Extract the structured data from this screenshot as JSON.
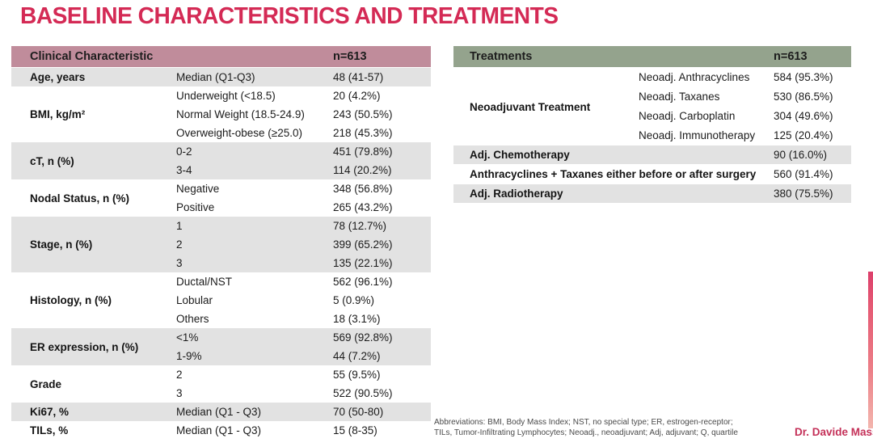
{
  "title": "BASELINE CHARACTERISTICS AND TREATMENTS",
  "colors": {
    "title": "#d42a55",
    "clinical_header_bg": "#c08c9b",
    "treatments_header_bg": "#94a38d",
    "row_shade": "#e2e2e2",
    "attribution": "#c43058",
    "accent_bar_top": "#dc3f6b",
    "accent_bar_bottom": "#f3b6ae"
  },
  "clinical_table": {
    "header": {
      "label": "Clinical Characteristic",
      "n": "n=613"
    },
    "groups": [
      {
        "label": "Age, years",
        "rows": [
          {
            "sub": "Median (Q1-Q3)",
            "value": "48 (41-57)"
          }
        ]
      },
      {
        "label": "BMI, kg/m²",
        "rows": [
          {
            "sub": "Underweight (<18.5)",
            "value": "20 (4.2%)"
          },
          {
            "sub": "Normal Weight (18.5-24.9)",
            "value": "243 (50.5%)"
          },
          {
            "sub": "Overweight-obese (≥25.0)",
            "value": "218 (45.3%)"
          }
        ]
      },
      {
        "label": "cT, n (%)",
        "rows": [
          {
            "sub": "0-2",
            "value": "451 (79.8%)"
          },
          {
            "sub": "3-4",
            "value": "114 (20.2%)"
          }
        ]
      },
      {
        "label": "Nodal Status, n (%)",
        "rows": [
          {
            "sub": "Negative",
            "value": "348 (56.8%)"
          },
          {
            "sub": "Positive",
            "value": "265 (43.2%)"
          }
        ]
      },
      {
        "label": "Stage, n (%)",
        "rows": [
          {
            "sub": "1",
            "value": "78 (12.7%)"
          },
          {
            "sub": "2",
            "value": "399 (65.2%)"
          },
          {
            "sub": "3",
            "value": "135 (22.1%)"
          }
        ]
      },
      {
        "label": "Histology, n (%)",
        "rows": [
          {
            "sub": "Ductal/NST",
            "value": "562 (96.1%)"
          },
          {
            "sub": "Lobular",
            "value": "5 (0.9%)"
          },
          {
            "sub": "Others",
            "value": "18 (3.1%)"
          }
        ]
      },
      {
        "label": "ER expression, n (%)",
        "rows": [
          {
            "sub": "<1%",
            "value": "569 (92.8%)"
          },
          {
            "sub": "1-9%",
            "value": "44 (7.2%)"
          }
        ]
      },
      {
        "label": "Grade",
        "rows": [
          {
            "sub": "2",
            "value": "55 (9.5%)"
          },
          {
            "sub": "3",
            "value": "522 (90.5%)"
          }
        ]
      },
      {
        "label": "Ki67, %",
        "rows": [
          {
            "sub": "Median (Q1 - Q3)",
            "value": "70 (50-80)"
          }
        ]
      },
      {
        "label": "TILs, %",
        "rows": [
          {
            "sub": "Median (Q1 - Q3)",
            "value": "15 (8-35)"
          }
        ]
      }
    ]
  },
  "treatments_table": {
    "header": {
      "label": "Treatments",
      "n": "n=613"
    },
    "neoadjuvant": {
      "label": "Neoadjuvant Treatment",
      "rows": [
        {
          "sub": "Neoadj. Anthracyclines",
          "value": "584 (95.3%)"
        },
        {
          "sub": "Neoadj. Taxanes",
          "value": "530 (86.5%)"
        },
        {
          "sub": "Neoadj. Carboplatin",
          "value": "304 (49.6%)"
        },
        {
          "sub": "Neoadj. Immunotherapy",
          "value": "125 (20.4%)"
        }
      ]
    },
    "rows": [
      {
        "label": "Adj. Chemotherapy",
        "value": "90 (16.0%)"
      },
      {
        "label": "Anthracyclines + Taxanes either before or after surgery",
        "value": "560 (91.4%)"
      },
      {
        "label": "Adj. Radiotherapy",
        "value": "380 (75.5%)"
      }
    ]
  },
  "footnote": {
    "line1": "Abbreviations: BMI, Body Mass Index; NST, no special type; ER, estrogen-receptor;",
    "line2": "TILs, Tumor-Infiltrating Lymphocytes; Neoadj., neoadjuvant; Adj, adjuvant; Q, quartile"
  },
  "attribution": "Dr. Davide Massa"
}
